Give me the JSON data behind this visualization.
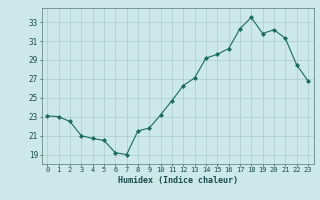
{
  "x": [
    0,
    1,
    2,
    3,
    4,
    5,
    6,
    7,
    8,
    9,
    10,
    11,
    12,
    13,
    14,
    15,
    16,
    17,
    18,
    19,
    20,
    21,
    22,
    23
  ],
  "y": [
    23.1,
    23.0,
    22.5,
    21.0,
    20.7,
    20.5,
    19.2,
    19.0,
    21.5,
    21.8,
    23.2,
    24.7,
    26.3,
    27.1,
    29.2,
    29.6,
    30.2,
    32.3,
    33.5,
    31.8,
    32.2,
    31.3,
    28.5,
    26.8
  ],
  "line_color": "#1a6b5a",
  "marker_color": "#1a6b5a",
  "bg_color": "#cce8e8",
  "grid_color": "#aacccc",
  "xlabel": "Humidex (Indice chaleur)",
  "yticks": [
    19,
    21,
    23,
    25,
    27,
    29,
    31,
    33
  ],
  "xticks": [
    0,
    1,
    2,
    3,
    4,
    5,
    6,
    7,
    8,
    9,
    10,
    11,
    12,
    13,
    14,
    15,
    16,
    17,
    18,
    19,
    20,
    21,
    22,
    23
  ],
  "ylim": [
    18.0,
    34.5
  ],
  "xlim": [
    -0.5,
    23.5
  ],
  "font_color": "#1a4a4a"
}
